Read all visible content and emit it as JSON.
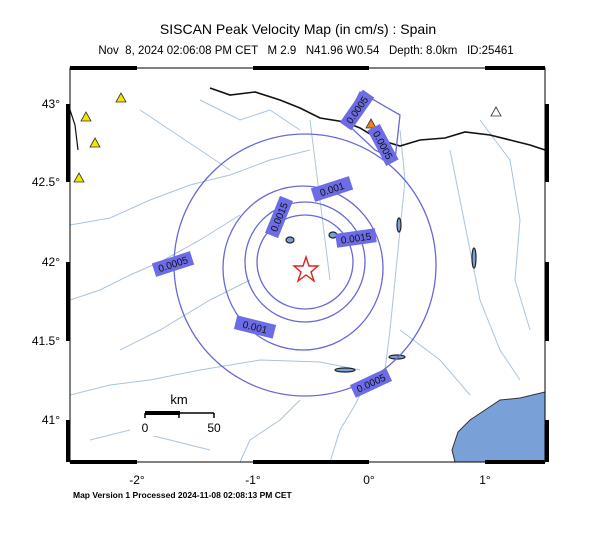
{
  "header": {
    "title": "SISCAN Peak Velocity Map (in cm/s) : Spain",
    "subtitle": "Nov  8, 2024 02:06:08 PM CET   M 2.9   N41.96 W0.54   Depth: 8.0km   ID:25461"
  },
  "latitude_labels": [
    "43°",
    "42.5°",
    "42°",
    "41.5°",
    "41°"
  ],
  "longitude_labels": [
    "-2°",
    "-1°",
    "0°",
    "1°"
  ],
  "contour_labels": [
    "0.0005",
    "0.0005",
    "0.001",
    "0.0015",
    "0.0015",
    "0.0005",
    "0.001",
    "0.0005"
  ],
  "scale_bar": {
    "unit": "km",
    "start": "0",
    "end": "50"
  },
  "footer": "Map Version 1 Processed 2024-11-08 02:08:13 PM CET"
}
